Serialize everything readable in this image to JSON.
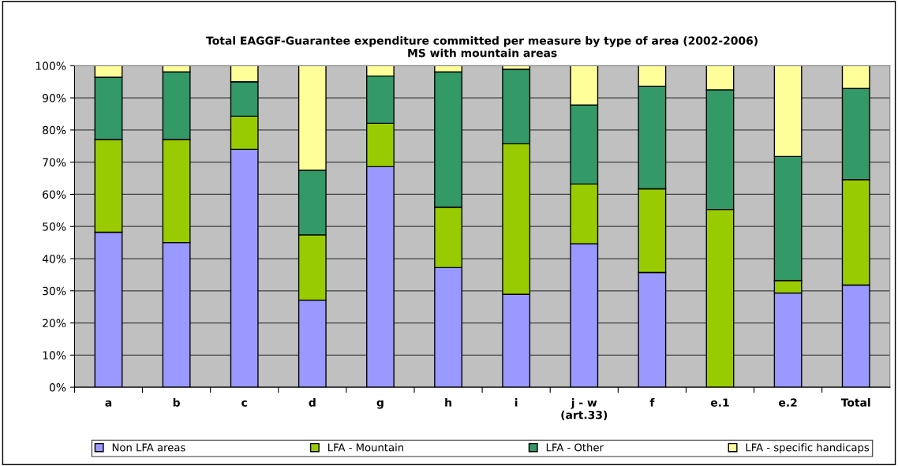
{
  "chart_data": {
    "type": "bar",
    "stacked": true,
    "title": "Total EAGGF-Guarantee expenditure committed per measure by type of area (2002-2006)\nMS with mountain areas",
    "categories": [
      "a",
      "b",
      "c",
      "d",
      "g",
      "h",
      "i",
      "j - w\n(art.33)",
      "f",
      "e.1",
      "e.2",
      "Total"
    ],
    "series": [
      {
        "name": "Non LFA areas",
        "color": "#9999ff",
        "values": [
          48.2,
          45.0,
          74.0,
          27.1,
          68.6,
          37.2,
          28.9,
          44.6,
          35.7,
          0,
          29.3,
          31.8
        ]
      },
      {
        "name": "LFA - Mountain",
        "color": "#99cc00",
        "values": [
          28.9,
          32.1,
          10.3,
          20.3,
          13.5,
          18.8,
          46.8,
          18.6,
          26.0,
          55.3,
          3.9,
          32.8
        ]
      },
      {
        "name": "LFA - Other",
        "color": "#339966",
        "values": [
          19.3,
          21.0,
          10.7,
          20.1,
          14.7,
          42.1,
          23.2,
          24.6,
          31.9,
          37.2,
          38.6,
          28.3
        ]
      },
      {
        "name": "LFA - specific handicaps",
        "color": "#ffff99",
        "values": [
          3.6,
          1.9,
          5.0,
          32.5,
          3.2,
          1.9,
          1.1,
          12.2,
          6.4,
          7.5,
          28.2,
          7.1
        ]
      }
    ],
    "ylim": [
      0,
      100
    ],
    "yticks": [
      {
        "value": 0,
        "label": "0%"
      },
      {
        "value": 10,
        "label": "10%"
      },
      {
        "value": 20,
        "label": "20%"
      },
      {
        "value": 30,
        "label": "30%"
      },
      {
        "value": 40,
        "label": "40%"
      },
      {
        "value": 50,
        "label": "50%"
      },
      {
        "value": 60,
        "label": "60%"
      },
      {
        "value": 70,
        "label": "70%"
      },
      {
        "value": 80,
        "label": "80%"
      },
      {
        "value": 90,
        "label": "90%"
      },
      {
        "value": 100,
        "label": "100%"
      }
    ],
    "grid": "y",
    "legend": "bottom"
  }
}
